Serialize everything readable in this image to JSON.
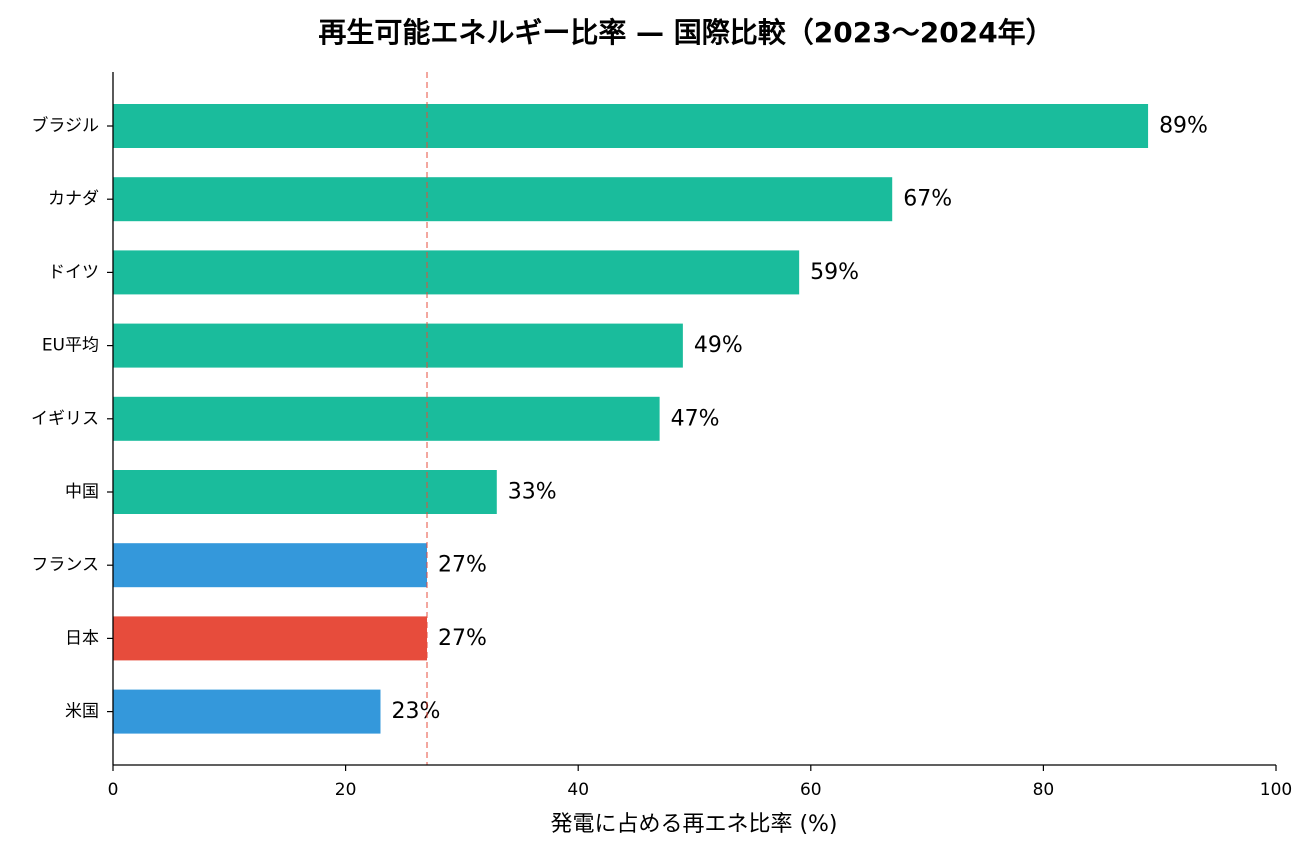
{
  "chart_data": {
    "type": "bar",
    "orientation": "horizontal",
    "title": "再生可能エネルギー比率 — 国際比較（2023〜2024年）",
    "xlabel": "発電に占める再エネ比率 (%)",
    "ylabel": "",
    "xlim": [
      0,
      100
    ],
    "x_ticks": [
      "0",
      "20",
      "40",
      "60",
      "80",
      "100"
    ],
    "categories": [
      "ブラジル",
      "カナダ",
      "ドイツ",
      "EU平均",
      "イギリス",
      "中国",
      "フランス",
      "日本",
      "米国"
    ],
    "values": [
      89,
      67,
      59,
      49,
      47,
      33,
      27,
      27,
      23
    ],
    "data_labels": [
      "89%",
      "67%",
      "59%",
      "49%",
      "47%",
      "33%",
      "27%",
      "27%",
      "23%"
    ],
    "bar_colors": [
      "#1abc9c",
      "#1abc9c",
      "#1abc9c",
      "#1abc9c",
      "#1abc9c",
      "#1abc9c",
      "#3498db",
      "#e74c3c",
      "#3498db"
    ],
    "reference_line": {
      "value": 27,
      "color": "#e74c3c",
      "style": "dashed"
    },
    "grid": false,
    "legend": "none"
  }
}
